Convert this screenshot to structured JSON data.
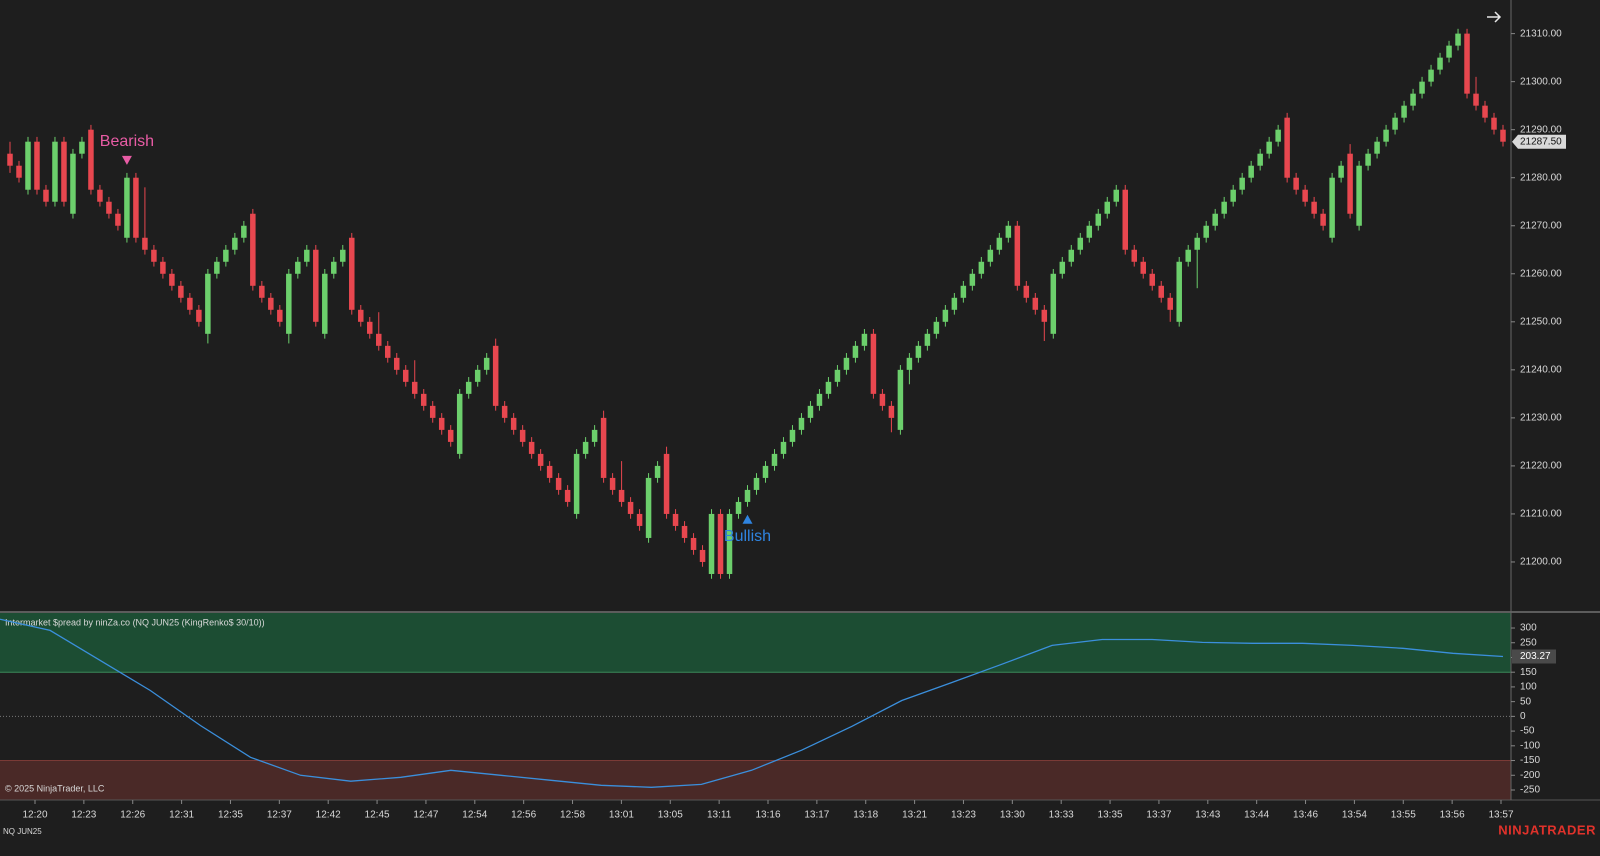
{
  "chart_data": [
    {
      "type": "candlestick",
      "candles": [
        [
          21285,
          21287.5,
          21281,
          21282.5
        ],
        [
          21282.5,
          21283.5,
          21279,
          21280
        ],
        [
          21277.5,
          21288.5,
          21276.5,
          21287.5
        ],
        [
          21287.5,
          21288.5,
          21276.5,
          21277.5
        ],
        [
          21277.5,
          21278.5,
          21274,
          21275
        ],
        [
          21275,
          21288.5,
          21274,
          21287.5
        ],
        [
          21287.5,
          21288.5,
          21274,
          21275
        ],
        [
          21272.5,
          21286,
          21271.5,
          21285
        ],
        [
          21285,
          21288.5,
          21284,
          21287.5
        ],
        [
          21290,
          21291,
          21276.5,
          21277.5
        ],
        [
          21277.5,
          21278.5,
          21274,
          21275
        ],
        [
          21275,
          21276,
          21271.5,
          21272.5
        ],
        [
          21272.5,
          21273.5,
          21269,
          21270
        ],
        [
          21267.5,
          21281,
          21266.5,
          21280
        ],
        [
          21280,
          21281,
          21266.5,
          21267.5
        ],
        [
          21267.5,
          21278,
          21264,
          21265
        ],
        [
          21265,
          21266,
          21261.5,
          21262.5
        ],
        [
          21262.5,
          21263.5,
          21259,
          21260
        ],
        [
          21260,
          21261,
          21256.5,
          21257.5
        ],
        [
          21257.5,
          21258.5,
          21254,
          21255
        ],
        [
          21255,
          21256,
          21251.5,
          21252.5
        ],
        [
          21252.5,
          21253.5,
          21249,
          21250
        ],
        [
          21247.5,
          21261,
          21245.5,
          21260
        ],
        [
          21260,
          21263.5,
          21259,
          21262.5
        ],
        [
          21262.5,
          21266,
          21261.5,
          21265
        ],
        [
          21265,
          21268.5,
          21264,
          21267.5
        ],
        [
          21267.5,
          21271,
          21266.5,
          21270
        ],
        [
          21272.5,
          21273.5,
          21256.5,
          21257.5
        ],
        [
          21257.5,
          21258.5,
          21254,
          21255
        ],
        [
          21255,
          21256,
          21251.5,
          21252.5
        ],
        [
          21252.5,
          21253.5,
          21249,
          21250
        ],
        [
          21247.5,
          21261,
          21245.5,
          21260
        ],
        [
          21260,
          21263.5,
          21259,
          21262.5
        ],
        [
          21262.5,
          21266,
          21261.5,
          21265
        ],
        [
          21265,
          21266,
          21249,
          21250
        ],
        [
          21247.5,
          21261,
          21246.5,
          21260
        ],
        [
          21260,
          21263.5,
          21259,
          21262.5
        ],
        [
          21262.5,
          21266,
          21261.5,
          21265
        ],
        [
          21267.5,
          21268.5,
          21251.5,
          21252.5
        ],
        [
          21252.5,
          21253.5,
          21249,
          21250
        ],
        [
          21250,
          21251,
          21246.5,
          21247.5
        ],
        [
          21247.5,
          21252,
          21244,
          21245
        ],
        [
          21245,
          21246,
          21241.5,
          21242.5
        ],
        [
          21242.5,
          21243.5,
          21239,
          21240
        ],
        [
          21240,
          21241,
          21236.5,
          21237.5
        ],
        [
          21237.5,
          21242,
          21234,
          21235
        ],
        [
          21235,
          21236,
          21231.5,
          21232.5
        ],
        [
          21232.5,
          21233.5,
          21229,
          21230
        ],
        [
          21230,
          21231,
          21226.5,
          21227.5
        ],
        [
          21227.5,
          21228.5,
          21224,
          21225
        ],
        [
          21222.5,
          21236,
          21221.5,
          21235
        ],
        [
          21235,
          21238.5,
          21234,
          21237.5
        ],
        [
          21237.5,
          21241,
          21236.5,
          21240
        ],
        [
          21240,
          21243.5,
          21239,
          21242.5
        ],
        [
          21245,
          21246.5,
          21231.5,
          21232.5
        ],
        [
          21232.5,
          21233.5,
          21229,
          21230
        ],
        [
          21230,
          21231,
          21226.5,
          21227.5
        ],
        [
          21227.5,
          21228.5,
          21224,
          21225
        ],
        [
          21225,
          21226,
          21221.5,
          21222.5
        ],
        [
          21222.5,
          21223.5,
          21219,
          21220
        ],
        [
          21220,
          21221,
          21216.5,
          21217.5
        ],
        [
          21217.5,
          21218.5,
          21214,
          21215
        ],
        [
          21215,
          21216,
          21211.5,
          21212.5
        ],
        [
          21210,
          21223.5,
          21209,
          21222.5
        ],
        [
          21222.5,
          21226,
          21221.5,
          21225
        ],
        [
          21225,
          21228.5,
          21224,
          21227.5
        ],
        [
          21230,
          21231.5,
          21216.5,
          21217.5
        ],
        [
          21217.5,
          21218.5,
          21214,
          21215
        ],
        [
          21215,
          21221,
          21211.5,
          21212.5
        ],
        [
          21212.5,
          21213.5,
          21209,
          21210
        ],
        [
          21210,
          21211,
          21206.5,
          21207.5
        ],
        [
          21205,
          21218.5,
          21204,
          21217.5
        ],
        [
          21217.5,
          21221,
          21216.5,
          21220
        ],
        [
          21222.5,
          21224,
          21209,
          21210
        ],
        [
          21210,
          21211,
          21206.5,
          21207.5
        ],
        [
          21207.5,
          21208.5,
          21204,
          21205
        ],
        [
          21205,
          21206,
          21201.5,
          21202.5
        ],
        [
          21202.5,
          21203.5,
          21199,
          21200
        ],
        [
          21197.5,
          21211,
          21196.5,
          21210
        ],
        [
          21210,
          21211,
          21196.5,
          21197.5
        ],
        [
          21197.5,
          21211,
          21196.5,
          21210
        ],
        [
          21210,
          21213.5,
          21209,
          21212.5
        ],
        [
          21212.5,
          21216,
          21211.5,
          21215
        ],
        [
          21215,
          21218.5,
          21214,
          21217.5
        ],
        [
          21217.5,
          21221,
          21216.5,
          21220
        ],
        [
          21220,
          21223.5,
          21219,
          21222.5
        ],
        [
          21222.5,
          21226,
          21221.5,
          21225
        ],
        [
          21225,
          21228.5,
          21224,
          21227.5
        ],
        [
          21227.5,
          21231,
          21226.5,
          21230
        ],
        [
          21230,
          21233.5,
          21229,
          21232.5
        ],
        [
          21232.5,
          21236,
          21231.5,
          21235
        ],
        [
          21235,
          21238.5,
          21234,
          21237.5
        ],
        [
          21237.5,
          21241,
          21236.5,
          21240
        ],
        [
          21240,
          21243.5,
          21239,
          21242.5
        ],
        [
          21242.5,
          21246,
          21241.5,
          21245
        ],
        [
          21245,
          21248.5,
          21244,
          21247.5
        ],
        [
          21247.5,
          21248.5,
          21234,
          21235
        ],
        [
          21235,
          21236,
          21231.5,
          21232.5
        ],
        [
          21232.5,
          21233.5,
          21227,
          21230
        ],
        [
          21227.5,
          21241,
          21226.5,
          21240
        ],
        [
          21240,
          21243.5,
          21237,
          21242.5
        ],
        [
          21242.5,
          21246,
          21241.5,
          21245
        ],
        [
          21245,
          21248.5,
          21244,
          21247.5
        ],
        [
          21247.5,
          21251,
          21246.5,
          21250
        ],
        [
          21250,
          21253.5,
          21249,
          21252.5
        ],
        [
          21252.5,
          21256,
          21251.5,
          21255
        ],
        [
          21255,
          21258.5,
          21254,
          21257.5
        ],
        [
          21257.5,
          21261,
          21256.5,
          21260
        ],
        [
          21260,
          21263.5,
          21259,
          21262.5
        ],
        [
          21262.5,
          21266,
          21261.5,
          21265
        ],
        [
          21265,
          21268.5,
          21264,
          21267.5
        ],
        [
          21267.5,
          21271,
          21266.5,
          21270
        ],
        [
          21270,
          21271,
          21256.5,
          21257.5
        ],
        [
          21257.5,
          21258.5,
          21254,
          21255
        ],
        [
          21255,
          21256,
          21251.5,
          21252.5
        ],
        [
          21252.5,
          21253.5,
          21246,
          21250
        ],
        [
          21247.5,
          21261,
          21246.5,
          21260
        ],
        [
          21260,
          21263.5,
          21259,
          21262.5
        ],
        [
          21262.5,
          21266,
          21261.5,
          21265
        ],
        [
          21265,
          21268.5,
          21264,
          21267.5
        ],
        [
          21267.5,
          21271,
          21266.5,
          21270
        ],
        [
          21270,
          21273.5,
          21269,
          21272.5
        ],
        [
          21272.5,
          21276,
          21271.5,
          21275
        ],
        [
          21275,
          21278.5,
          21274,
          21277.5
        ],
        [
          21277.5,
          21278.5,
          21264,
          21265
        ],
        [
          21265,
          21266,
          21261.5,
          21262.5
        ],
        [
          21262.5,
          21263.5,
          21259,
          21260
        ],
        [
          21260,
          21261,
          21256.5,
          21257.5
        ],
        [
          21257.5,
          21258.5,
          21254,
          21255
        ],
        [
          21255,
          21256,
          21250,
          21252.5
        ],
        [
          21250,
          21263.5,
          21249,
          21262.5
        ],
        [
          21262.5,
          21266,
          21261.5,
          21265
        ],
        [
          21265,
          21268.5,
          21257,
          21267.5
        ],
        [
          21267.5,
          21271,
          21266.5,
          21270
        ],
        [
          21270,
          21273.5,
          21269,
          21272.5
        ],
        [
          21272.5,
          21276,
          21271.5,
          21275
        ],
        [
          21275,
          21278.5,
          21274,
          21277.5
        ],
        [
          21277.5,
          21281,
          21276.5,
          21280
        ],
        [
          21280,
          21283.5,
          21279,
          21282.5
        ],
        [
          21282.5,
          21286,
          21281.5,
          21285
        ],
        [
          21285,
          21288.5,
          21284,
          21287.5
        ],
        [
          21287.5,
          21291,
          21286.5,
          21290
        ],
        [
          21292.5,
          21293.5,
          21279,
          21280
        ],
        [
          21280,
          21281,
          21276.5,
          21277.5
        ],
        [
          21277.5,
          21278.5,
          21274,
          21275
        ],
        [
          21275,
          21276,
          21271.5,
          21272.5
        ],
        [
          21272.5,
          21273.5,
          21269,
          21270
        ],
        [
          21267.5,
          21281,
          21266.5,
          21280
        ],
        [
          21280,
          21283.5,
          21279,
          21282.5
        ],
        [
          21285,
          21287,
          21271.5,
          21272.5
        ],
        [
          21270,
          21283.5,
          21269,
          21282.5
        ],
        [
          21282.5,
          21286,
          21281.5,
          21285
        ],
        [
          21285,
          21288.5,
          21284,
          21287.5
        ],
        [
          21287.5,
          21291,
          21286.5,
          21290
        ],
        [
          21290,
          21293.5,
          21289,
          21292.5
        ],
        [
          21292.5,
          21296,
          21291.5,
          21295
        ],
        [
          21295,
          21298.5,
          21294,
          21297.5
        ],
        [
          21297.5,
          21301,
          21296.5,
          21300
        ],
        [
          21300,
          21303.5,
          21299,
          21302.5
        ],
        [
          21302.5,
          21306,
          21301.5,
          21305
        ],
        [
          21305,
          21308.5,
          21304,
          21307.5
        ],
        [
          21307.5,
          21311,
          21306.5,
          21310
        ],
        [
          21310,
          21311,
          21296.5,
          21297.5
        ],
        [
          21297.5,
          21301,
          21294,
          21295
        ],
        [
          21295,
          21296,
          21291.5,
          21292.5
        ],
        [
          21292.5,
          21293.5,
          21289,
          21290
        ],
        [
          21290,
          21291,
          21286.5,
          21287.5
        ]
      ],
      "up_color": "#6ccf6c",
      "down_color": "#e8474f",
      "ylim": [
        21190,
        21317
      ],
      "yticks": [
        {
          "value": 21200,
          "label": "21200.00"
        },
        {
          "value": 21210,
          "label": "21210.00"
        },
        {
          "value": 21220,
          "label": "21220.00"
        },
        {
          "value": 21230,
          "label": "21230.00"
        },
        {
          "value": 21240,
          "label": "21240.00"
        },
        {
          "value": 21250,
          "label": "21250.00"
        },
        {
          "value": 21260,
          "label": "21260.00"
        },
        {
          "value": 21270,
          "label": "21270.00"
        },
        {
          "value": 21280,
          "label": "21280.00"
        },
        {
          "value": 21290,
          "label": "21290.00"
        },
        {
          "value": 21300,
          "label": "21300.00"
        },
        {
          "value": 21310,
          "label": "21310.00"
        }
      ],
      "last_price": {
        "value": 21287.5,
        "label": "21287.50"
      },
      "xtick_labels": [
        "12:20",
        "12:23",
        "12:26",
        "12:31",
        "12:35",
        "12:37",
        "12:42",
        "12:45",
        "12:47",
        "12:54",
        "12:56",
        "12:58",
        "13:01",
        "13:05",
        "13:11",
        "13:16",
        "13:17",
        "13:18",
        "13:21",
        "13:23",
        "13:30",
        "13:33",
        "13:35",
        "13:37",
        "13:43",
        "13:44",
        "13:46",
        "13:54",
        "13:55",
        "13:56",
        "13:57"
      ],
      "annotations": [
        {
          "text": "Bearish",
          "at": 13,
          "side": "above",
          "color": "#e85ca5"
        },
        {
          "text": "Bullish",
          "at": 82,
          "side": "below",
          "color": "#2f84e0"
        }
      ]
    },
    {
      "type": "line",
      "title": "Intermarket $pread by ninZa.co (NQ JUN25 (KingRenko$ 30/10))",
      "values": [
        330,
        292,
        190,
        88,
        -31,
        -139,
        -200,
        -220,
        -207,
        -183,
        -200,
        -217,
        -234,
        -241,
        -231,
        -183,
        -115,
        -34,
        54,
        115,
        177,
        241,
        261,
        261,
        251,
        248,
        248,
        241,
        231,
        214,
        203.27
      ],
      "color": "#3b8fdc",
      "ylim": [
        -284,
        351
      ],
      "yticks": [
        300,
        250,
        200,
        150,
        100,
        50,
        0,
        -50,
        -100,
        -150,
        -200,
        -250
      ],
      "upper_level": 150,
      "lower_level": -150,
      "reference_line": 0,
      "upper_color": "#1c4d33",
      "lower_color": "#4a2927",
      "last_value": {
        "value": 203.27,
        "label": "203.27"
      }
    }
  ],
  "footer": {
    "copyright": "© 2025 NinjaTrader, LLC",
    "instrument": "NQ JUN25",
    "brand": "NINJATRADER"
  }
}
